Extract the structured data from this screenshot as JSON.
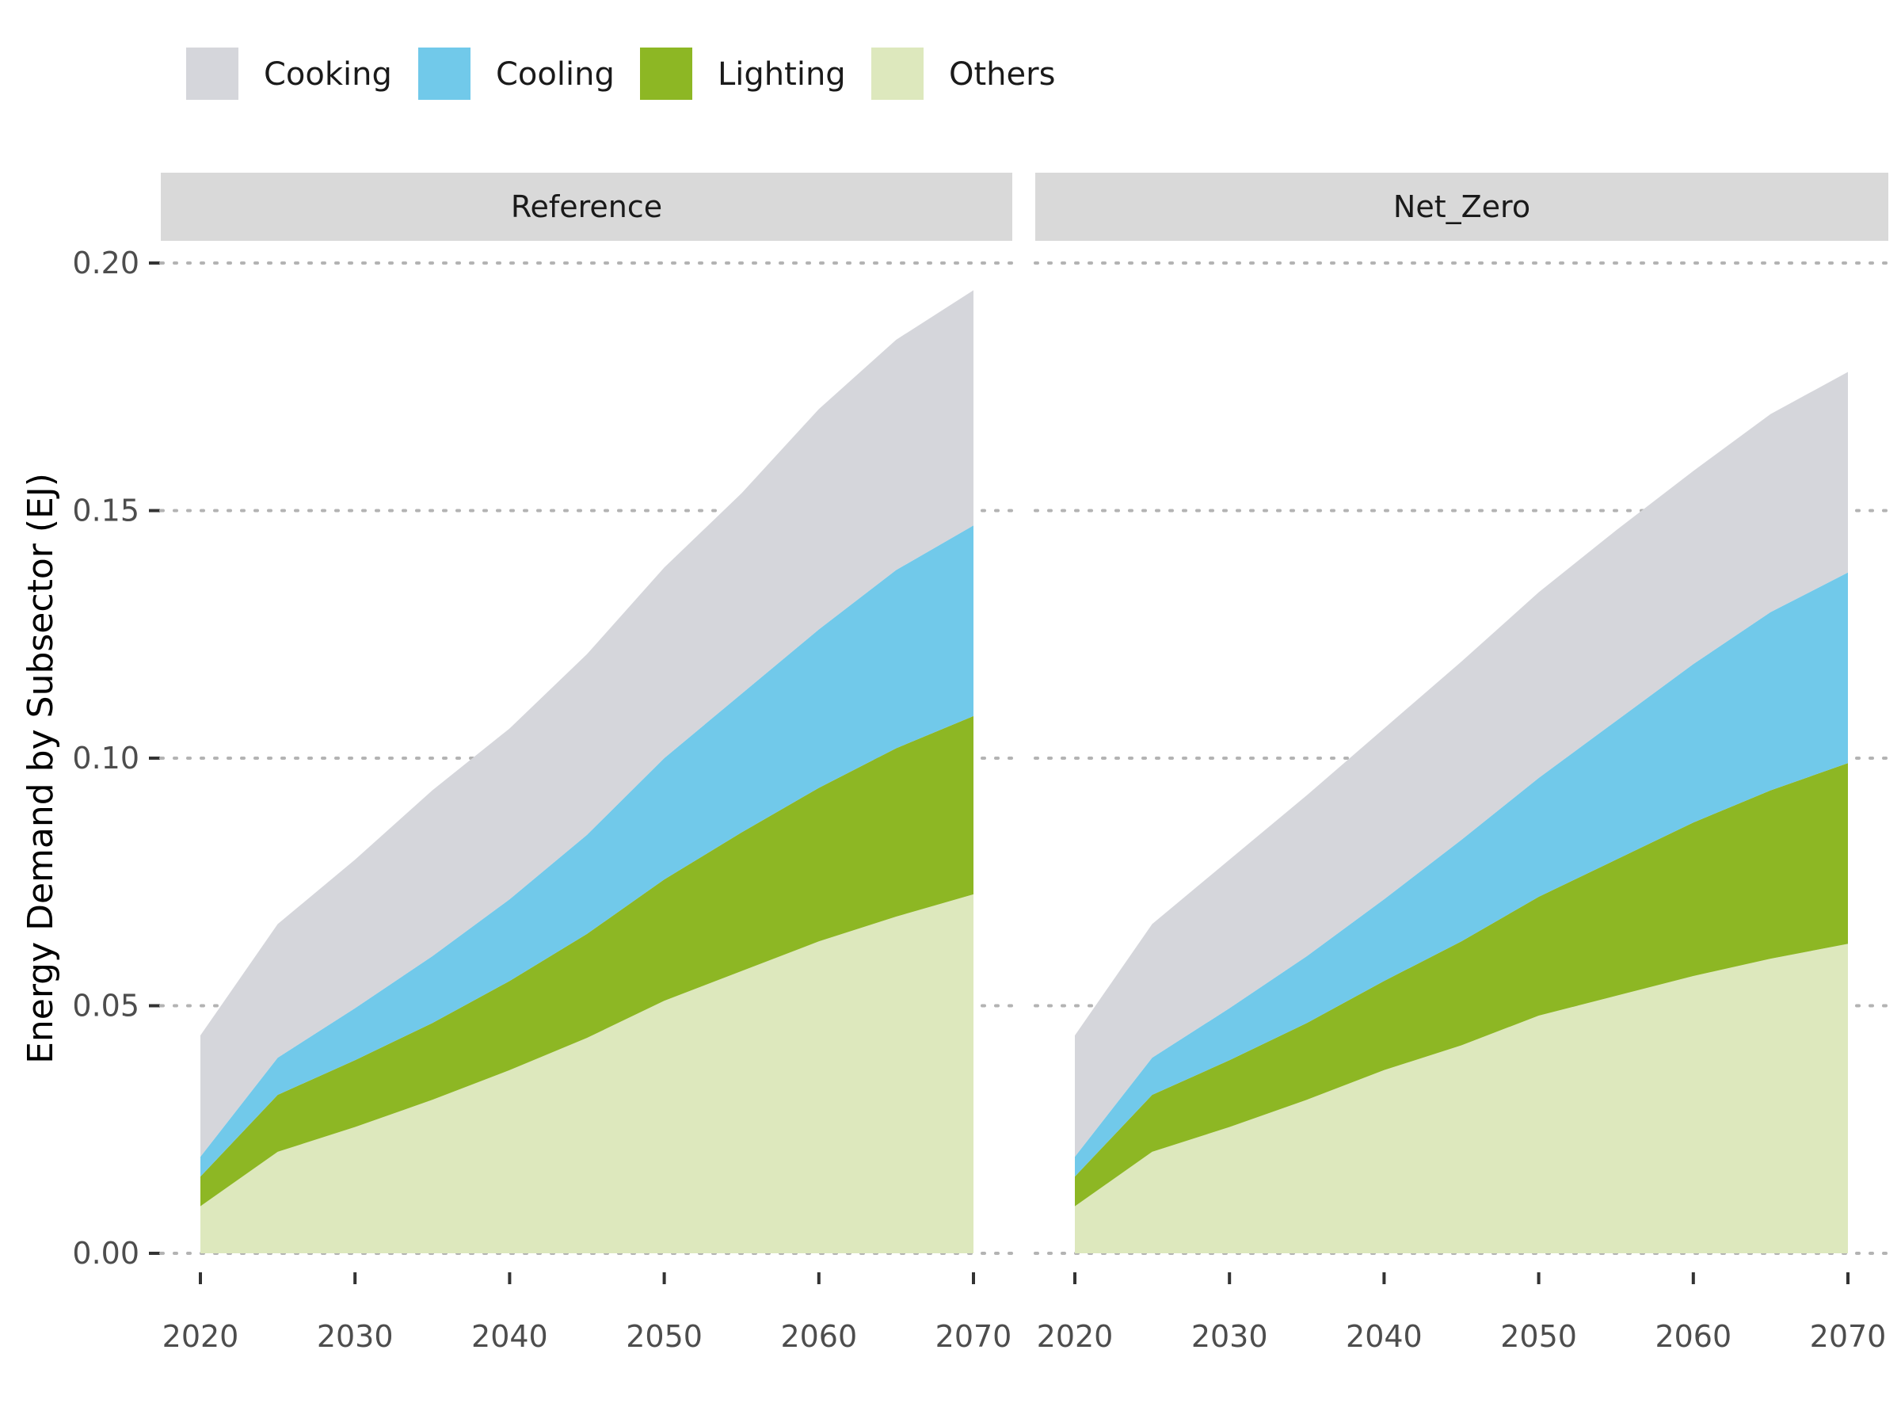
{
  "chart_data": {
    "type": "area",
    "stacked": true,
    "ylabel": "Energy Demand by Subsector (EJ)",
    "xlabel": "",
    "ylim": [
      0,
      0.2
    ],
    "xlim": [
      2020,
      2070
    ],
    "x_ticks": [
      "2020",
      "2030",
      "2040",
      "2050",
      "2060",
      "2070"
    ],
    "y_ticks": [
      "0.00",
      "0.05",
      "0.10",
      "0.15",
      "0.20"
    ],
    "grid": "horizontal dotted",
    "legend_position": "top-left",
    "x": [
      2020,
      2025,
      2030,
      2035,
      2040,
      2045,
      2050,
      2055,
      2060,
      2065,
      2070
    ],
    "stack_order": [
      "Others",
      "Lighting",
      "Cooling",
      "Cooking"
    ],
    "legend": [
      {
        "name": "Cooking",
        "color": "#d5d6db"
      },
      {
        "name": "Cooling",
        "color": "#71c9ea"
      },
      {
        "name": "Lighting",
        "color": "#8db724"
      },
      {
        "name": "Others",
        "color": "#dde8bd"
      }
    ],
    "panels": [
      {
        "name": "Reference",
        "series": [
          {
            "name": "Others",
            "values": [
              0.0095,
              0.0205,
              0.0255,
              0.031,
              0.037,
              0.0435,
              0.051,
              0.057,
              0.063,
              0.068,
              0.0725
            ]
          },
          {
            "name": "Lighting",
            "values": [
              0.006,
              0.0115,
              0.0135,
              0.0155,
              0.018,
              0.021,
              0.0245,
              0.028,
              0.031,
              0.034,
              0.036
            ]
          },
          {
            "name": "Cooling",
            "values": [
              0.004,
              0.0075,
              0.0105,
              0.0135,
              0.0165,
              0.02,
              0.0245,
              0.028,
              0.032,
              0.036,
              0.0385
            ]
          },
          {
            "name": "Cooking",
            "values": [
              0.0245,
              0.027,
              0.03,
              0.0335,
              0.0345,
              0.0365,
              0.0385,
              0.0405,
              0.0445,
              0.0465,
              0.0475
            ]
          }
        ]
      },
      {
        "name": "Net_Zero",
        "series": [
          {
            "name": "Others",
            "values": [
              0.0095,
              0.0205,
              0.0255,
              0.031,
              0.037,
              0.042,
              0.048,
              0.052,
              0.056,
              0.0595,
              0.0625
            ]
          },
          {
            "name": "Lighting",
            "values": [
              0.006,
              0.0115,
              0.0135,
              0.0155,
              0.018,
              0.021,
              0.024,
              0.0275,
              0.031,
              0.034,
              0.0365
            ]
          },
          {
            "name": "Cooling",
            "values": [
              0.004,
              0.0075,
              0.0105,
              0.0135,
              0.0165,
              0.0205,
              0.024,
              0.028,
              0.032,
              0.036,
              0.0385
            ]
          },
          {
            "name": "Cooking",
            "values": [
              0.0245,
              0.027,
              0.03,
              0.0325,
              0.0345,
              0.036,
              0.0375,
              0.0385,
              0.039,
              0.04,
              0.0405
            ]
          }
        ]
      }
    ]
  }
}
